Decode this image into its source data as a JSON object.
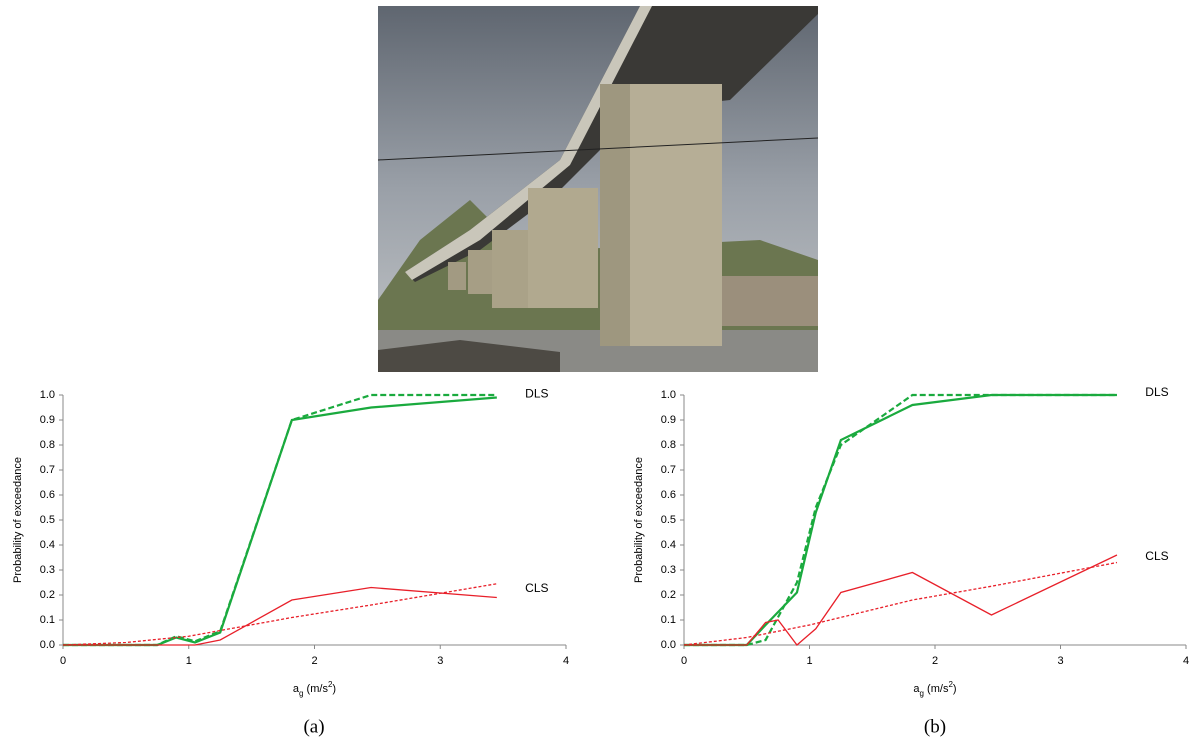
{
  "chart_data": [
    {
      "type": "line",
      "caption": "(a)",
      "ylabel": "Probability of exceedance",
      "xlabel_parts": [
        "a",
        "g",
        " (m/s",
        "2",
        ")"
      ],
      "xlim": [
        0,
        4
      ],
      "xticks": [
        0,
        1,
        2,
        3,
        4
      ],
      "ylim": [
        0,
        1
      ],
      "yticks": [
        {
          "value": 0,
          "label": "0.0"
        },
        0.1,
        0.2,
        0.3,
        0.4,
        0.5,
        0.6,
        0.7,
        0.8,
        0.9,
        {
          "value": 1,
          "label": "1.0"
        }
      ],
      "series": [
        {
          "color": "#1aaa3e",
          "style": "solid",
          "x": [
            0,
            0.75,
            0.9,
            1.05,
            1.25,
            1.82,
            2.45,
            3.45
          ],
          "values": [
            0,
            0,
            0.03,
            0.01,
            0.05,
            0.9,
            0.95,
            0.99
          ]
        },
        {
          "color": "#1aaa3e",
          "style": "dashed",
          "x": [
            0,
            0.75,
            0.9,
            1.05,
            1.25,
            1.82,
            2.45,
            3.45
          ],
          "values": [
            0,
            0,
            0.035,
            0.015,
            0.055,
            0.9,
            1.0,
            1.0
          ]
        },
        {
          "color": "#e8202a",
          "style": "solid",
          "x": [
            0,
            1.05,
            1.25,
            1.82,
            2.45,
            3.45
          ],
          "values": [
            0,
            0,
            0.02,
            0.18,
            0.23,
            0.19
          ]
        },
        {
          "color": "#e8202a",
          "style": "dashed",
          "x": [
            0,
            0.5,
            1,
            1.82,
            2.45,
            3.45
          ],
          "values": [
            0,
            0.01,
            0.035,
            0.11,
            0.16,
            0.245
          ]
        }
      ],
      "annotations": [
        {
          "text": "DLS",
          "color": "#1aaa3e"
        },
        {
          "text": "CLS",
          "color": "#e8202a"
        }
      ]
    },
    {
      "type": "line",
      "caption": "(b)",
      "ylabel": "Probability of exceedance",
      "xlabel_parts": [
        "a",
        "g",
        " (m/s",
        "2",
        ")"
      ],
      "xlim": [
        0,
        4
      ],
      "xticks": [
        0,
        1,
        2,
        3,
        4
      ],
      "ylim": [
        0,
        1
      ],
      "yticks": [
        {
          "value": 0,
          "label": "0.0"
        },
        0.1,
        0.2,
        0.3,
        0.4,
        0.5,
        0.6,
        0.7,
        0.8,
        0.9,
        {
          "value": 1,
          "label": "1.0"
        }
      ],
      "series": [
        {
          "color": "#1aaa3e",
          "style": "solid",
          "x": [
            0,
            0.5,
            0.65,
            0.9,
            1.05,
            1.25,
            1.82,
            2.45,
            3.45
          ],
          "values": [
            0,
            0,
            0.08,
            0.21,
            0.53,
            0.82,
            0.96,
            1.0,
            1.0
          ]
        },
        {
          "color": "#1aaa3e",
          "style": "dashed",
          "x": [
            0,
            0.5,
            0.65,
            0.9,
            1.05,
            1.25,
            1.82,
            2.45,
            3.45
          ],
          "values": [
            0,
            0,
            0.02,
            0.25,
            0.55,
            0.8,
            1.0,
            1.0,
            1.0
          ]
        },
        {
          "color": "#e8202a",
          "style": "solid",
          "x": [
            0,
            0.5,
            0.65,
            0.75,
            0.9,
            1.05,
            1.25,
            1.82,
            2.45,
            3.45
          ],
          "values": [
            0,
            0,
            0.09,
            0.1,
            0.0,
            0.065,
            0.21,
            0.29,
            0.12,
            0.36
          ]
        },
        {
          "color": "#e8202a",
          "style": "dashed",
          "x": [
            0,
            0.5,
            1,
            1.82,
            2.45,
            3.45
          ],
          "values": [
            0,
            0.03,
            0.08,
            0.18,
            0.235,
            0.33
          ]
        }
      ],
      "annotations": [
        {
          "text": "DLS",
          "color": "#1aaa3e"
        },
        {
          "text": "CLS",
          "color": "#e8202a"
        }
      ]
    }
  ]
}
